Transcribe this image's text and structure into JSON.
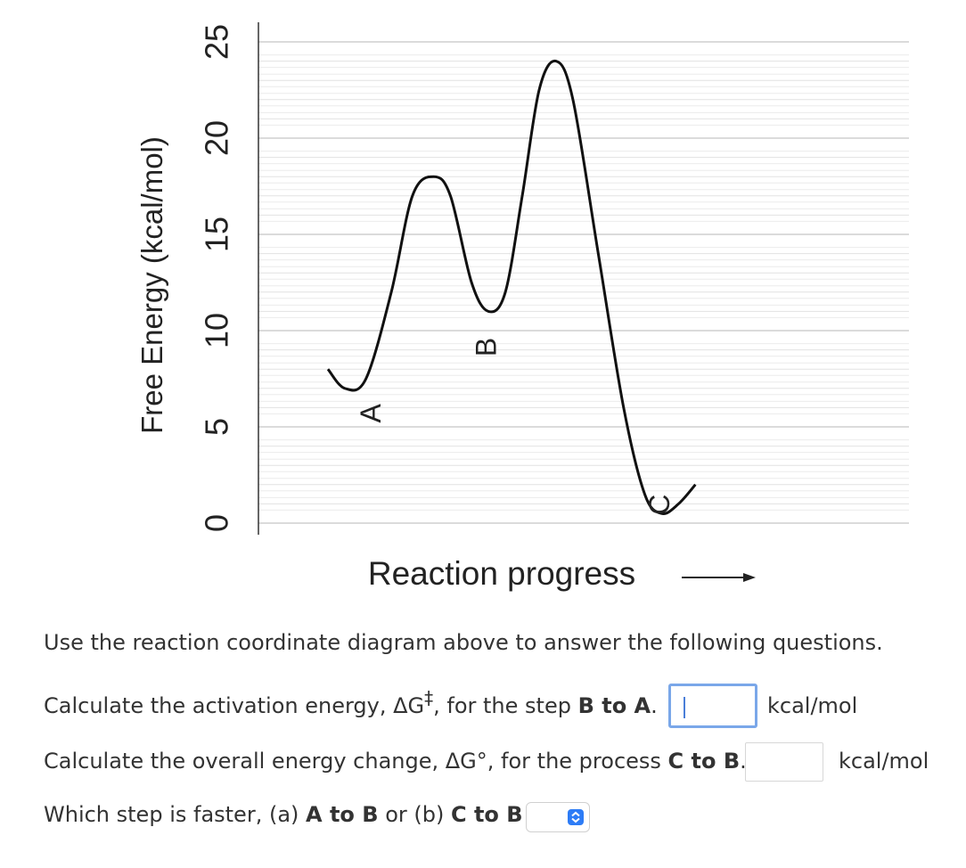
{
  "chart_data": {
    "type": "line",
    "ylabel": "Free Energy (kcal/mol)",
    "xlabel": "Reaction progress",
    "ylim": [
      0,
      25
    ],
    "yticks": [
      "0",
      "5",
      "10",
      "15",
      "20",
      "25"
    ],
    "grid": true,
    "curve": [
      {
        "x": 0.0,
        "y": 8.0
      },
      {
        "x": 0.04,
        "y": 7.0
      },
      {
        "x": 0.09,
        "y": 7.5
      },
      {
        "x": 0.15,
        "y": 12.0
      },
      {
        "x": 0.2,
        "y": 17.0
      },
      {
        "x": 0.25,
        "y": 18.0
      },
      {
        "x": 0.29,
        "y": 17.0
      },
      {
        "x": 0.34,
        "y": 12.5
      },
      {
        "x": 0.38,
        "y": 11.0
      },
      {
        "x": 0.42,
        "y": 12.0
      },
      {
        "x": 0.46,
        "y": 17.0
      },
      {
        "x": 0.5,
        "y": 22.5
      },
      {
        "x": 0.54,
        "y": 24.0
      },
      {
        "x": 0.58,
        "y": 22.0
      },
      {
        "x": 0.64,
        "y": 14.0
      },
      {
        "x": 0.7,
        "y": 6.0
      },
      {
        "x": 0.75,
        "y": 1.5
      },
      {
        "x": 0.79,
        "y": 0.5
      },
      {
        "x": 0.83,
        "y": 1.0
      },
      {
        "x": 0.87,
        "y": 2.0
      }
    ],
    "points": [
      {
        "label": "A",
        "x": 0.06,
        "y": 7.0
      },
      {
        "label": "B",
        "x": 0.38,
        "y": 11.0
      },
      {
        "label": "C",
        "x": 0.79,
        "y": 0.5
      }
    ]
  },
  "text": {
    "intro": "Use the reaction coordinate diagram above to answer the following questions.",
    "q1_pre": "Calculate the activation energy, ΔG",
    "q1_dagger": "‡",
    "q1_mid": ", for the step ",
    "q1_bold": "B to A",
    "q1_end": ".",
    "q2_pre": "Calculate the overall energy change, ΔG°, for the process ",
    "q2_bold": "C to B",
    "q2_end": ".",
    "q3_pre": "Which step is faster, (a) ",
    "q3_bold1": "A to B",
    "q3_mid": " or (b) ",
    "q3_bold2": "C to B",
    "q3_end": " ?",
    "unit1": "kcal/mol",
    "unit2": "kcal/mol"
  },
  "inputs": {
    "activation_energy_value": "",
    "overall_change_value": "",
    "faster_step_selected": ""
  },
  "colors": {
    "focus_border": "#7aa7e9",
    "select_accent": "#2d7cf6"
  }
}
